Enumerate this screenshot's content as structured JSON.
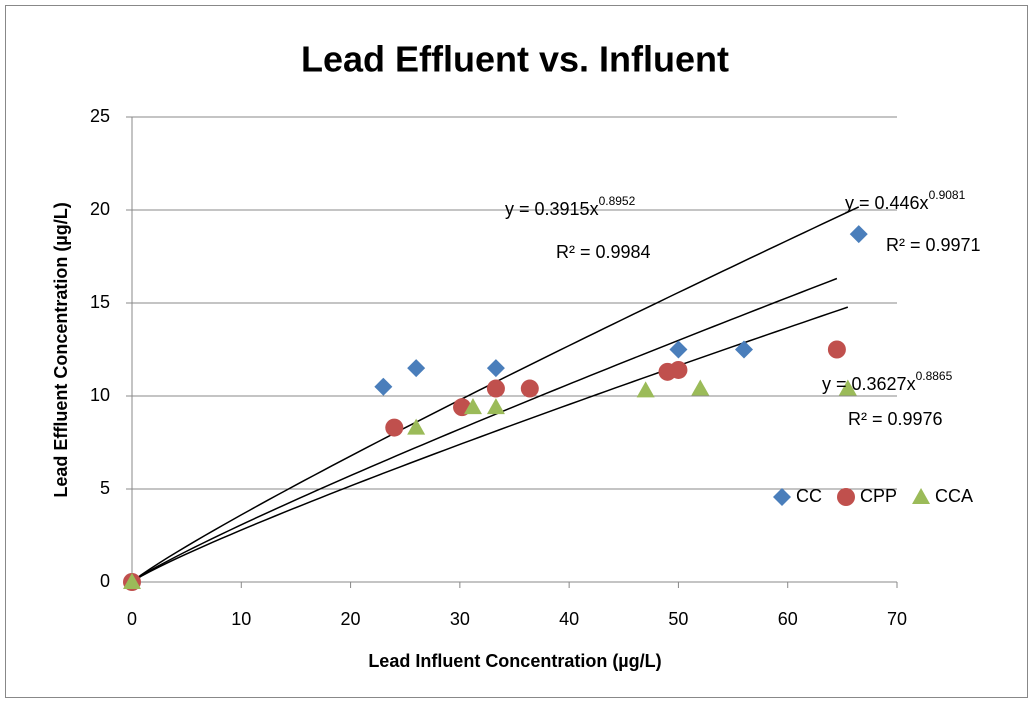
{
  "chart_data": {
    "type": "scatter",
    "title": "Lead Effluent vs. Influent",
    "x_label": "Lead Influent Concentration (µg/L)",
    "y_label": "Lead Effluent Concentration (µg/L)",
    "xlim": [
      0,
      70
    ],
    "xticks": [
      0,
      10,
      20,
      30,
      40,
      50,
      60,
      70
    ],
    "ylim": [
      0,
      25
    ],
    "yticks": [
      0,
      5,
      10,
      15,
      20,
      25
    ],
    "grid": true,
    "legend": "right",
    "series": [
      {
        "name": "CC",
        "color": "#4a7ebb",
        "marker": "diamond",
        "x": [
          0,
          23,
          26,
          33.3,
          50,
          56,
          66.5
        ],
        "values": [
          0,
          10.5,
          11.5,
          11.5,
          12.5,
          12.5,
          18.7
        ]
      },
      {
        "name": "CPP",
        "color": "#c0504d",
        "marker": "circle",
        "x": [
          0,
          24,
          30.2,
          33.3,
          36.4,
          49,
          50,
          64.5
        ],
        "values": [
          0,
          8.3,
          9.4,
          10.4,
          10.4,
          11.3,
          11.4,
          12.5
        ]
      },
      {
        "name": "CCA",
        "color": "#9bbb59",
        "marker": "triangle",
        "x": [
          0,
          26,
          31.2,
          33.3,
          47,
          52,
          65.5
        ],
        "values": [
          0,
          8.3,
          9.4,
          9.4,
          10.3,
          10.4,
          10.4
        ]
      }
    ],
    "trendlines": [
      {
        "coefficient": 0.446,
        "exponent": 0.9081,
        "equation_label": "y = 0.446x",
        "r2_label": "R² = 0.9971"
      },
      {
        "coefficient": 0.3915,
        "exponent": 0.8952,
        "equation_label": "y = 0.3915x",
        "r2_label": "R² = 0.9984"
      },
      {
        "coefficient": 0.3627,
        "exponent": 0.8865,
        "equation_label": "y = 0.3627x",
        "r2_label": "R² = 0.9976"
      }
    ]
  }
}
